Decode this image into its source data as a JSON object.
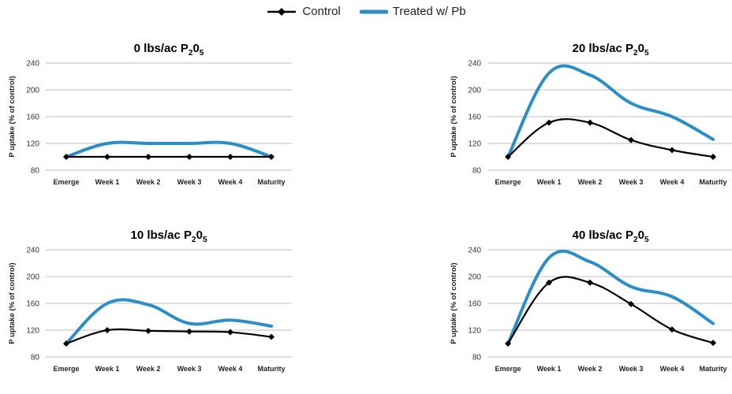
{
  "legend": {
    "control": "Control",
    "treated": "Treated w/ Pb"
  },
  "colors": {
    "control": "#000000",
    "treated": "#2b8ec6",
    "grid": "#bdbdbd"
  },
  "chart_data": [
    {
      "type": "line",
      "title": "0 lbs/ac P",
      "title_sub": "2",
      "title_mid": "0",
      "title_sub2": "5",
      "ylabel": "P uptake (% of control)",
      "categories": [
        "Emerge",
        "Week 1",
        "Week 2",
        "Week 3",
        "Week 4",
        "Maturity"
      ],
      "yticks": [
        80,
        120,
        160,
        200,
        240
      ],
      "ylim": [
        80,
        240
      ],
      "series": [
        {
          "name": "Control",
          "values": [
            100,
            100,
            100,
            100,
            100,
            100
          ]
        },
        {
          "name": "Treated w/ Pb",
          "values": [
            100,
            120,
            120,
            120,
            120,
            100
          ]
        }
      ]
    },
    {
      "type": "line",
      "title": "20 lbs/ac P",
      "title_sub": "2",
      "title_mid": "0",
      "title_sub2": "5",
      "ylabel": "P uptake (% of control)",
      "categories": [
        "Emerge",
        "Week 1",
        "Week 2",
        "Week 3",
        "Week 4",
        "Maturity"
      ],
      "yticks": [
        80,
        120,
        160,
        200,
        240
      ],
      "ylim": [
        80,
        240
      ],
      "series": [
        {
          "name": "Control",
          "values": [
            100,
            151,
            151,
            125,
            110,
            100
          ]
        },
        {
          "name": "Treated w/ Pb",
          "values": [
            100,
            225,
            222,
            180,
            160,
            126
          ]
        }
      ]
    },
    {
      "type": "line",
      "title": "10 lbs/ac P",
      "title_sub": "2",
      "title_mid": "0",
      "title_sub2": "5",
      "ylabel": "P uptake (% of control)",
      "categories": [
        "Emerge",
        "Week 1",
        "Week 2",
        "Week 3",
        "Week 4",
        "Maturity"
      ],
      "yticks": [
        80,
        120,
        160,
        200,
        240
      ],
      "ylim": [
        80,
        240
      ],
      "series": [
        {
          "name": "Control",
          "values": [
            100,
            120,
            119,
            118,
            117,
            110
          ]
        },
        {
          "name": "Treated w/ Pb",
          "values": [
            100,
            160,
            158,
            130,
            135,
            126
          ]
        }
      ]
    },
    {
      "type": "line",
      "title": "40 lbs/ac P",
      "title_sub": "2",
      "title_mid": "0",
      "title_sub2": "5",
      "ylabel": "P uptake (% of control)",
      "categories": [
        "Emerge",
        "Week 1",
        "Week 2",
        "Week 3",
        "Week 4",
        "Maturity"
      ],
      "yticks": [
        80,
        120,
        160,
        200,
        240
      ],
      "ylim": [
        80,
        240
      ],
      "series": [
        {
          "name": "Control",
          "values": [
            100,
            191,
            191,
            159,
            121,
            101
          ]
        },
        {
          "name": "Treated w/ Pb",
          "values": [
            100,
            228,
            222,
            185,
            170,
            130
          ]
        }
      ]
    }
  ]
}
